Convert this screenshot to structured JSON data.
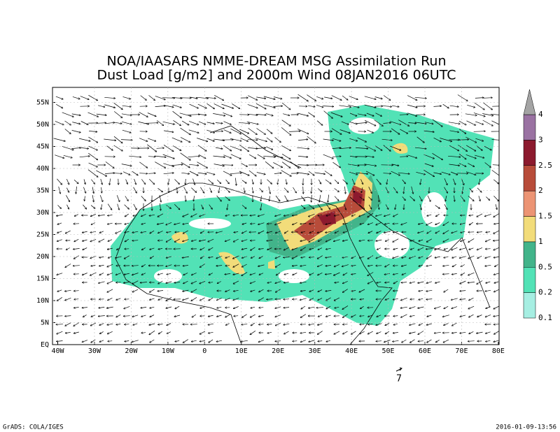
{
  "title": [
    "NOA/IAASARS NMME-DREAM MSG Assimilation Run",
    "Dust Load [g/m2] and 2000m Wind 08JAN2016 06UTC"
  ],
  "lat_labels": [
    "55N",
    "50N",
    "45N",
    "40N",
    "35N",
    "30N",
    "25N",
    "20N",
    "15N",
    "10N",
    "5N",
    "EQ"
  ],
  "lon_labels": [
    "40W",
    "30W",
    "20W",
    "10W",
    "0",
    "10E",
    "20E",
    "30E",
    "40E",
    "50E",
    "60E",
    "70E",
    "80E"
  ],
  "colorbar": {
    "labels": [
      "0.1",
      "0.2",
      "0.5",
      "1",
      "1.5",
      "2",
      "2.5",
      "3",
      "4"
    ],
    "colors": [
      "#a6eee2",
      "#52e2b6",
      "#42b48a",
      "#f2dc7a",
      "#ec9474",
      "#b84c3a",
      "#8c1a2e",
      "#9a72a2",
      "#a4a4a4"
    ]
  },
  "reference_vector": "7",
  "footer": {
    "left": "GrADS: COLA/IGES",
    "right": "2016-01-09-13:56"
  }
}
